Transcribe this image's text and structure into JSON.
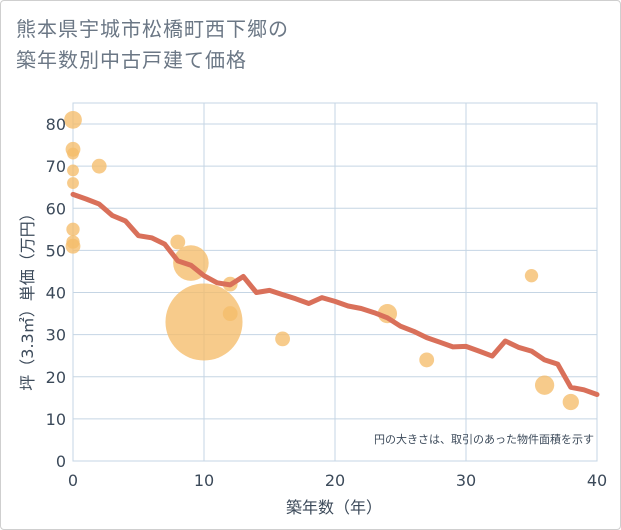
{
  "chart_data": {
    "type": "scatter",
    "title_lines": [
      "熊本県宇城市松橋町西下郷の",
      "築年数別中古戸建て価格"
    ],
    "xlabel": "築年数（年）",
    "ylabel": "坪（3.3㎡）単価（万円）",
    "xlim": [
      0,
      40
    ],
    "ylim": [
      0,
      85
    ],
    "xticks": [
      "0",
      "10",
      "20",
      "30",
      "40"
    ],
    "yticks": [
      "0",
      "10",
      "20",
      "30",
      "40",
      "50",
      "60",
      "70",
      "80"
    ],
    "note": "円の大きさは、取引のあった物件面積を示す",
    "colors": {
      "bubble": "#f5bd6a",
      "trend": "#d9705a",
      "grid": "#c5d5e4"
    },
    "bubbles": [
      {
        "x": 0,
        "y": 81,
        "size": 12
      },
      {
        "x": 0,
        "y": 74,
        "size": 10
      },
      {
        "x": 0,
        "y": 73,
        "size": 8
      },
      {
        "x": 0,
        "y": 69,
        "size": 8
      },
      {
        "x": 0,
        "y": 66,
        "size": 8
      },
      {
        "x": 0,
        "y": 55,
        "size": 9
      },
      {
        "x": 0,
        "y": 52,
        "size": 9
      },
      {
        "x": 0,
        "y": 51,
        "size": 10
      },
      {
        "x": 2,
        "y": 70,
        "size": 10
      },
      {
        "x": 8,
        "y": 52,
        "size": 10
      },
      {
        "x": 9,
        "y": 47,
        "size": 24
      },
      {
        "x": 10,
        "y": 33,
        "size": 52
      },
      {
        "x": 12,
        "y": 42,
        "size": 10
      },
      {
        "x": 12,
        "y": 35,
        "size": 10
      },
      {
        "x": 16,
        "y": 29,
        "size": 10
      },
      {
        "x": 24,
        "y": 35,
        "size": 13
      },
      {
        "x": 27,
        "y": 24,
        "size": 10
      },
      {
        "x": 35,
        "y": 44,
        "size": 9
      },
      {
        "x": 36,
        "y": 18,
        "size": 13
      },
      {
        "x": 38,
        "y": 14,
        "size": 11
      }
    ],
    "trend": {
      "x": [
        0,
        1,
        2,
        3,
        4,
        5,
        6,
        7,
        8,
        9,
        10,
        11,
        12,
        13,
        14,
        15,
        16,
        17,
        18,
        19,
        20,
        21,
        22,
        23,
        24,
        25,
        26,
        27,
        28,
        29,
        30,
        31,
        32,
        33,
        34,
        35,
        36,
        37,
        38,
        39,
        40
      ],
      "y": [
        63.3,
        62.2,
        61.0,
        58.3,
        57.0,
        53.5,
        53.0,
        51.5,
        47.5,
        46.5,
        44.0,
        42.3,
        41.8,
        43.8,
        40.0,
        40.5,
        39.5,
        38.5,
        37.4,
        38.8,
        37.9,
        36.8,
        36.2,
        35.2,
        34.0,
        32.0,
        30.8,
        29.3,
        28.2,
        27.1,
        27.2,
        26.1,
        24.9,
        28.5,
        27.0,
        26.1,
        24.0,
        23.0,
        17.5,
        16.9,
        15.8
      ]
    }
  }
}
